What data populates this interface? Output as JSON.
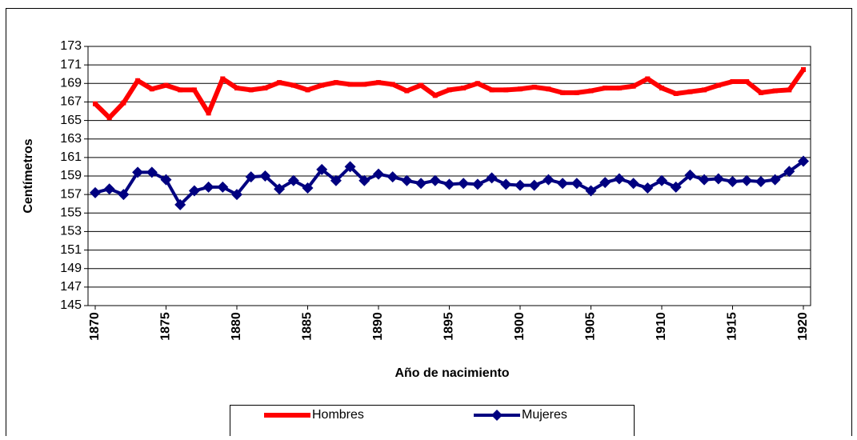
{
  "chart_data": {
    "type": "line",
    "y_label": "Centímetros",
    "x_label": "Año de nacimiento",
    "x": [
      1870,
      1871,
      1872,
      1873,
      1874,
      1875,
      1876,
      1877,
      1878,
      1879,
      1880,
      1881,
      1882,
      1883,
      1884,
      1885,
      1886,
      1887,
      1888,
      1889,
      1890,
      1891,
      1892,
      1893,
      1894,
      1895,
      1896,
      1897,
      1898,
      1899,
      1900,
      1901,
      1902,
      1903,
      1904,
      1905,
      1906,
      1907,
      1908,
      1909,
      1910,
      1911,
      1912,
      1913,
      1914,
      1915,
      1916,
      1917,
      1918,
      1919,
      1920
    ],
    "series": [
      {
        "name": "Hombres",
        "color": "#ff0000",
        "marker": "square",
        "values": [
          166.8,
          165.3,
          166.9,
          169.3,
          168.4,
          168.8,
          168.3,
          168.3,
          165.8,
          169.5,
          168.5,
          168.3,
          168.5,
          169.1,
          168.8,
          168.3,
          168.8,
          169.1,
          168.9,
          168.9,
          169.1,
          168.9,
          168.2,
          168.8,
          167.7,
          168.3,
          168.5,
          169.0,
          168.3,
          168.3,
          168.4,
          168.6,
          168.4,
          168.0,
          168.0,
          168.2,
          168.5,
          168.5,
          168.7,
          169.5,
          168.5,
          167.9,
          168.1,
          168.3,
          168.8,
          169.2,
          169.2,
          168.0,
          168.2,
          168.3,
          170.5
        ]
      },
      {
        "name": "Mujeres",
        "color": "#000080",
        "marker": "diamond",
        "values": [
          157.2,
          157.6,
          157.0,
          159.4,
          159.4,
          158.6,
          155.9,
          157.4,
          157.8,
          157.8,
          157.0,
          158.9,
          159.0,
          157.6,
          158.5,
          157.7,
          159.7,
          158.5,
          160.0,
          158.5,
          159.2,
          158.9,
          158.5,
          158.2,
          158.5,
          158.1,
          158.2,
          158.1,
          158.8,
          158.1,
          158.0,
          158.0,
          158.6,
          158.2,
          158.2,
          157.4,
          158.3,
          158.7,
          158.2,
          157.7,
          158.5,
          157.8,
          159.1,
          158.6,
          158.7,
          158.4,
          158.5,
          158.4,
          158.6,
          159.5,
          160.6
        ]
      }
    ],
    "xlim": [
      1870,
      1920
    ],
    "xticks": [
      1870,
      1875,
      1880,
      1885,
      1890,
      1895,
      1900,
      1905,
      1910,
      1915,
      1920
    ],
    "ylim": [
      145,
      173
    ],
    "yticks": [
      145,
      147,
      149,
      151,
      153,
      155,
      157,
      159,
      161,
      163,
      165,
      167,
      169,
      171,
      173
    ],
    "grid": true,
    "legend": "bottom"
  }
}
